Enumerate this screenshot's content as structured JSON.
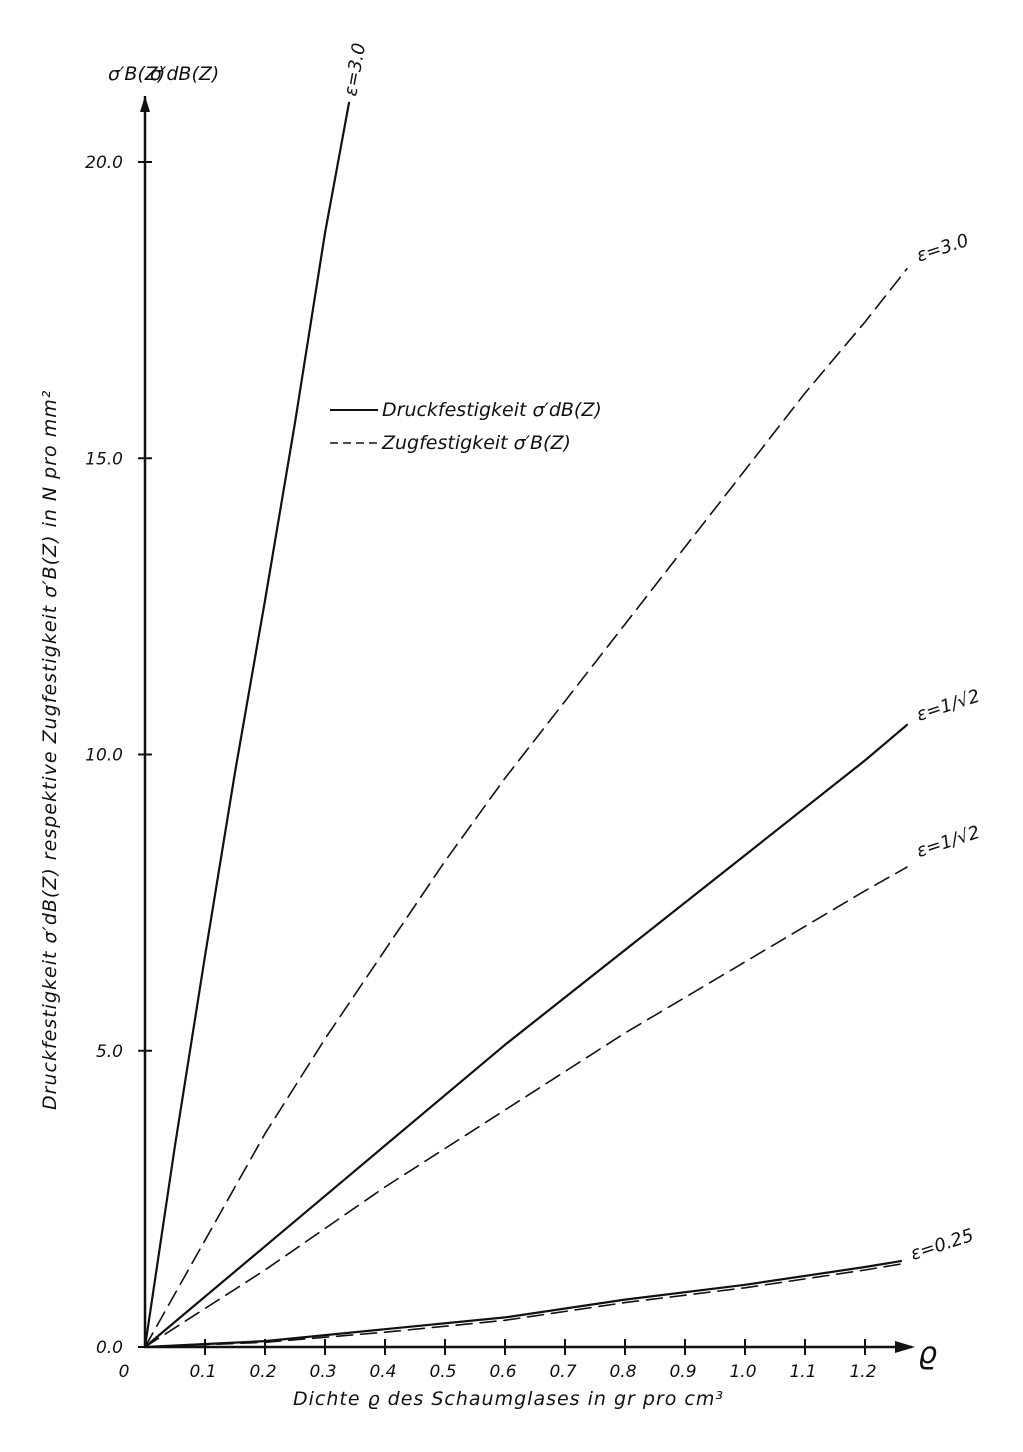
{
  "chart_data": {
    "type": "line",
    "title": "",
    "xlabel": "Dichte ϱ des Schaumglases in gr pro cm³",
    "ylabel": "Druckfestigkeit σ′dB(Z) respektive Zugfestigkeit σ′B(Z) in N pro mm²",
    "x_axis_symbol": "ϱ",
    "y_axis_symbols": [
      "σ′B(Z)",
      "σ′dB(Z)"
    ],
    "xlim": [
      0,
      1.3
    ],
    "ylim": [
      0,
      21.5
    ],
    "x_ticks": [
      "0.1",
      "0.2",
      "0.3",
      "0.4",
      "0.5",
      "0.6",
      "0.7",
      "0.8",
      "0.9",
      "1.0",
      "1.1",
      "1.2"
    ],
    "x_origin_label": "0",
    "y_ticks": [
      "0.0",
      "5.0",
      "10.0",
      "15.0",
      "20.0"
    ],
    "legend": {
      "placement": "upper-middle",
      "entries": [
        {
          "text": "Druckfestigkeit  σ′dB(Z)",
          "style": "solid"
        },
        {
          "text": "Zugfestigkeit    σ′B(Z)",
          "style": "dashed"
        }
      ]
    },
    "series": [
      {
        "label": "ε=3.0",
        "style": "solid",
        "x": [
          0,
          0.05,
          0.1,
          0.15,
          0.2,
          0.25,
          0.3,
          0.34
        ],
        "y": [
          0,
          3.4,
          6.6,
          9.7,
          12.6,
          15.6,
          18.8,
          21.0
        ]
      },
      {
        "label": "ε=3.0",
        "style": "dashed",
        "x": [
          0,
          0.1,
          0.2,
          0.3,
          0.4,
          0.5,
          0.6,
          0.7,
          0.8,
          0.9,
          1.0,
          1.1,
          1.2,
          1.27
        ],
        "y": [
          0,
          1.8,
          3.6,
          5.2,
          6.7,
          8.2,
          9.6,
          10.9,
          12.2,
          13.5,
          14.8,
          16.1,
          17.3,
          18.2
        ]
      },
      {
        "label": "ε=1/√2",
        "style": "solid",
        "x": [
          0,
          0.2,
          0.4,
          0.6,
          0.8,
          1.0,
          1.2,
          1.27
        ],
        "y": [
          0,
          1.7,
          3.4,
          5.1,
          6.7,
          8.3,
          9.9,
          10.5
        ]
      },
      {
        "label": "ε=1/√2",
        "style": "dashed",
        "x": [
          0,
          0.2,
          0.4,
          0.6,
          0.8,
          1.0,
          1.2,
          1.27
        ],
        "y": [
          0,
          1.3,
          2.7,
          4.0,
          5.3,
          6.5,
          7.7,
          8.1
        ]
      },
      {
        "label": "ε=0.25",
        "style": "solid",
        "x": [
          0,
          0.2,
          0.4,
          0.6,
          0.8,
          1.0,
          1.2,
          1.26
        ],
        "y": [
          0,
          0.1,
          0.3,
          0.5,
          0.8,
          1.05,
          1.35,
          1.45
        ]
      },
      {
        "label": "",
        "style": "dashed",
        "x": [
          0,
          0.2,
          0.4,
          0.6,
          0.8,
          1.0,
          1.2,
          1.26
        ],
        "y": [
          0,
          0.08,
          0.25,
          0.45,
          0.75,
          1.0,
          1.3,
          1.4
        ]
      }
    ],
    "curve_labels": [
      {
        "text": "ε=3.0",
        "at_x": 0.345,
        "at_y": 21.1
      },
      {
        "text": "ε=3.0",
        "at_x": 1.28,
        "at_y": 18.35
      },
      {
        "text": "ε=1/√2",
        "at_x": 1.28,
        "at_y": 10.6
      },
      {
        "text": "ε=1/√2",
        "at_x": 1.28,
        "at_y": 8.3
      },
      {
        "text": "ε=0.25",
        "at_x": 1.27,
        "at_y": 1.5
      }
    ],
    "grid": false
  }
}
